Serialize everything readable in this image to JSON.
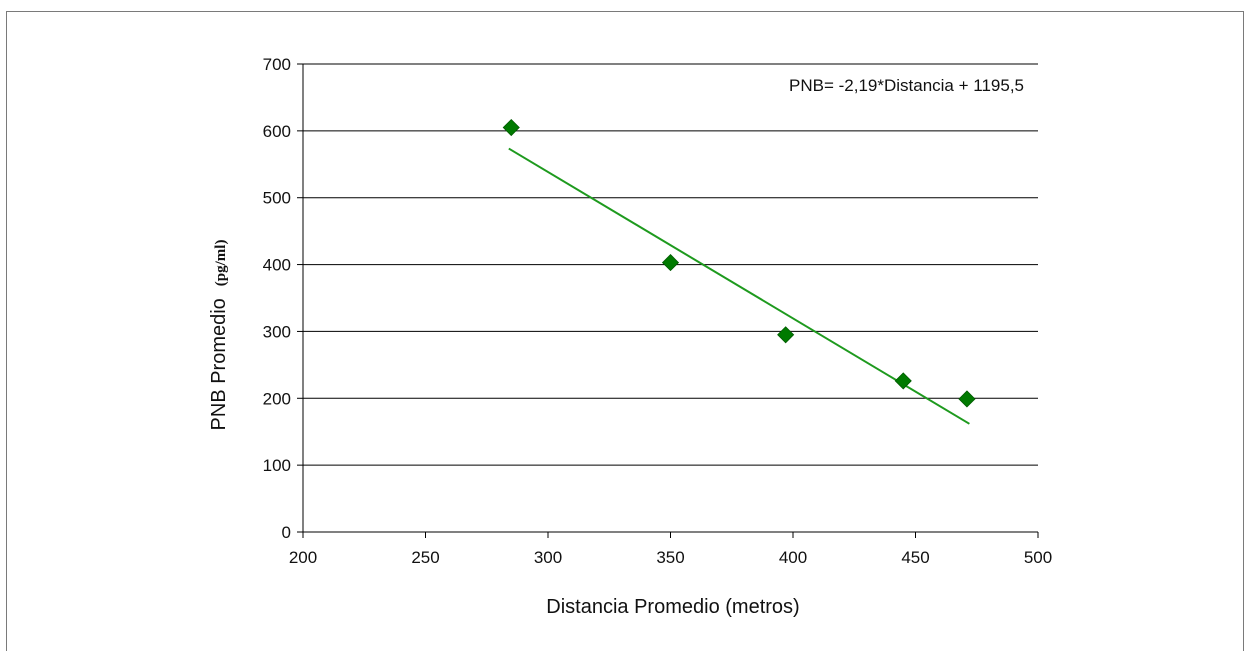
{
  "chart_data": {
    "type": "scatter",
    "xlabel": "Distancia Promedio (metros)",
    "ylabel_main": "PNB Promedio",
    "ylabel_unit": "(pg/ml)",
    "xlim": [
      200,
      500
    ],
    "ylim": [
      0,
      700
    ],
    "x_ticks": [
      200,
      250,
      300,
      350,
      400,
      450,
      500
    ],
    "y_ticks": [
      0,
      100,
      200,
      300,
      400,
      500,
      600,
      700
    ],
    "grid": "horizontal",
    "series": [
      {
        "marker": "diamond",
        "color": "#007a00",
        "points": [
          {
            "x": 285,
            "y": 605
          },
          {
            "x": 350,
            "y": 403
          },
          {
            "x": 397,
            "y": 295
          },
          {
            "x": 445,
            "y": 226
          },
          {
            "x": 471,
            "y": 199
          }
        ]
      }
    ],
    "trendline": {
      "color": "#1e9a1e",
      "slope": -2.19,
      "intercept": 1195.5,
      "x_start": 284,
      "x_end": 472,
      "equation": "PNB= -2,19*Distancia + 1195,5"
    }
  }
}
